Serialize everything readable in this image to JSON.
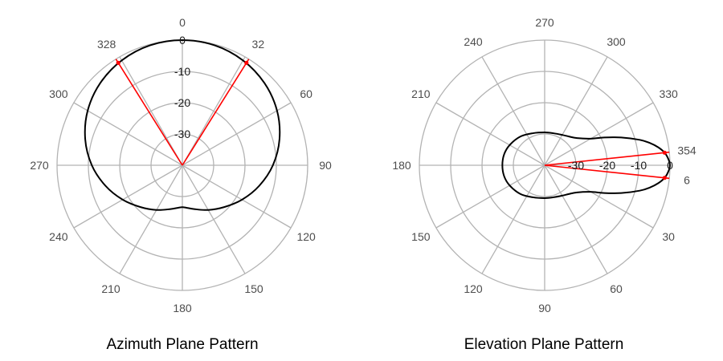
{
  "chart_data": [
    {
      "type": "polar-line",
      "title": "Azimuth Plane Pattern",
      "angle_ticks": [
        0,
        32,
        60,
        90,
        120,
        150,
        180,
        210,
        240,
        270,
        300,
        328
      ],
      "angle_tick_labels": [
        "0",
        "32",
        "60",
        "90",
        "120",
        "150",
        "180",
        "210",
        "240",
        "270",
        "300",
        "328"
      ],
      "radial_ticks": [
        -30,
        -20,
        -10,
        0
      ],
      "radial_tick_labels": [
        "-30",
        "-20",
        "-10",
        "0"
      ],
      "rlim": [
        -40,
        0
      ],
      "angle_zero": "top",
      "angle_direction": "clockwise",
      "grid": true,
      "series": [
        {
          "color": "#000000",
          "angles": [
            0,
            15,
            30,
            45,
            60,
            75,
            90,
            105,
            120,
            135,
            150,
            165,
            175,
            180,
            185,
            195,
            210,
            225,
            240,
            255,
            270,
            285,
            300,
            315,
            330,
            345
          ],
          "values": [
            0.0,
            -0.3,
            -1.3,
            -2.9,
            -5.1,
            -7.9,
            -11.1,
            -14.6,
            -18.0,
            -21.1,
            -23.5,
            -25.5,
            -26.4,
            -26.6,
            -26.4,
            -25.5,
            -23.5,
            -21.1,
            -18.0,
            -14.6,
            -11.1,
            -7.9,
            -5.1,
            -2.9,
            -1.3,
            -0.3
          ]
        }
      ],
      "beamwidth_markers": [
        {
          "angle": 32,
          "value": -1.4,
          "color": "#ff0000"
        },
        {
          "angle": 328,
          "value": -1.4,
          "color": "#ff0000"
        }
      ]
    },
    {
      "type": "polar-line",
      "title": "Elevation Plane Pattern",
      "angle_ticks": [
        0,
        6,
        30,
        60,
        90,
        120,
        150,
        180,
        210,
        240,
        270,
        300,
        330,
        354
      ],
      "angle_tick_labels": [
        "0",
        "6",
        "30",
        "60",
        "90",
        "120",
        "150",
        "180",
        "210",
        "240",
        "270",
        "300",
        "330",
        "354"
      ],
      "angle_tick_labels_shown": [
        "6",
        "30",
        "60",
        "90",
        "120",
        "150",
        "180",
        "210",
        "240",
        "270",
        "300",
        "330",
        "354"
      ],
      "radial_ticks": [
        -30,
        -20,
        -10,
        0
      ],
      "radial_tick_labels": [
        "-30",
        "-20",
        "-10",
        "0"
      ],
      "rlim": [
        -40,
        0
      ],
      "angle_zero": "right",
      "angle_direction": "clockwise",
      "grid": true,
      "series": [
        {
          "color": "#000000",
          "angles": [
            0,
            3,
            6,
            9,
            12,
            15,
            20,
            25,
            30,
            40,
            50,
            60,
            75,
            90,
            110,
            130,
            150,
            165,
            180,
            195,
            210,
            230,
            250,
            270,
            285,
            300,
            310,
            320,
            330,
            335,
            340,
            345,
            348,
            351,
            354,
            357
          ],
          "values": [
            0.0,
            -0.5,
            -1.5,
            -3.3,
            -5.7,
            -8.6,
            -14.0,
            -19.0,
            -23.0,
            -26.5,
            -28.0,
            -28.8,
            -29.4,
            -29.5,
            -29.1,
            -28.0,
            -27.1,
            -26.6,
            -26.5,
            -26.6,
            -27.1,
            -28.0,
            -29.1,
            -29.5,
            -29.4,
            -28.8,
            -28.0,
            -26.5,
            -23.0,
            -19.0,
            -14.0,
            -8.6,
            -5.7,
            -3.3,
            -1.5,
            -0.5
          ]
        }
      ],
      "beamwidth_markers": [
        {
          "angle": 6,
          "value": -1.5,
          "color": "#ff0000"
        },
        {
          "angle": 354,
          "value": -1.5,
          "color": "#ff0000"
        }
      ]
    }
  ]
}
